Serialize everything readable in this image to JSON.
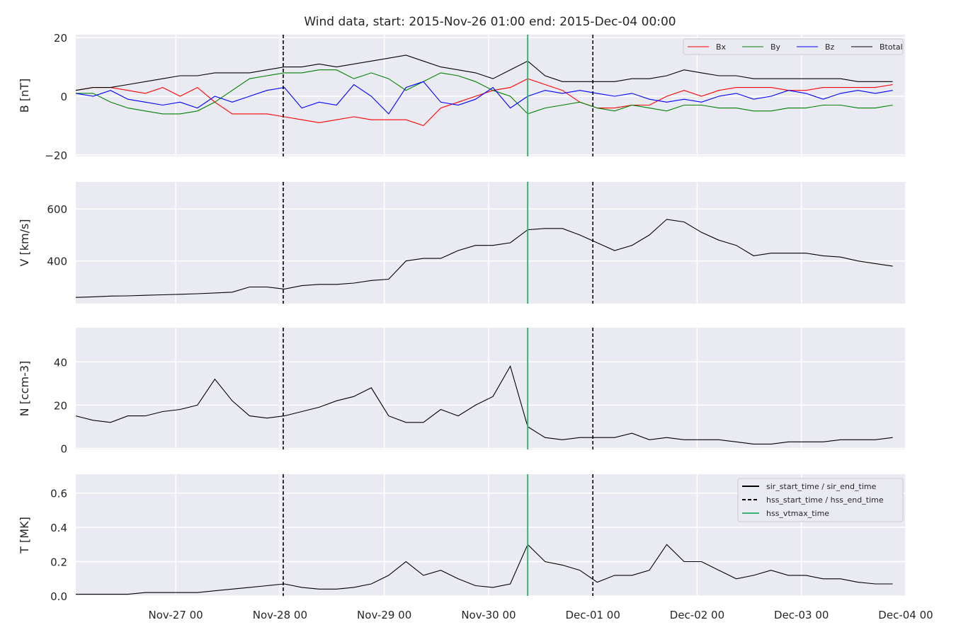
{
  "chart_data": {
    "type": "line",
    "title": "Wind data, start: 2015-Nov-26 01:00  end: 2015-Dec-04 00:00",
    "x": [
      "2015-11-26T01:00",
      "2015-11-26T05:00",
      "2015-11-26T09:00",
      "2015-11-26T13:00",
      "2015-11-26T17:00",
      "2015-11-26T21:00",
      "2015-11-27T01:00",
      "2015-11-27T05:00",
      "2015-11-27T09:00",
      "2015-11-27T13:00",
      "2015-11-27T17:00",
      "2015-11-27T21:00",
      "2015-11-28T01:00",
      "2015-11-28T05:00",
      "2015-11-28T09:00",
      "2015-11-28T13:00",
      "2015-11-28T17:00",
      "2015-11-28T21:00",
      "2015-11-29T01:00",
      "2015-11-29T05:00",
      "2015-11-29T09:00",
      "2015-11-29T13:00",
      "2015-11-29T17:00",
      "2015-11-29T21:00",
      "2015-11-30T01:00",
      "2015-11-30T05:00",
      "2015-11-30T09:00",
      "2015-11-30T13:00",
      "2015-11-30T17:00",
      "2015-11-30T21:00",
      "2015-12-01T01:00",
      "2015-12-01T05:00",
      "2015-12-01T09:00",
      "2015-12-01T13:00",
      "2015-12-01T17:00",
      "2015-12-01T21:00",
      "2015-12-02T01:00",
      "2015-12-02T05:00",
      "2015-12-02T09:00",
      "2015-12-02T13:00",
      "2015-12-02T17:00",
      "2015-12-02T21:00",
      "2015-12-03T01:00",
      "2015-12-03T05:00",
      "2015-12-03T09:00",
      "2015-12-03T13:00",
      "2015-12-03T17:00",
      "2015-12-03T21:00"
    ],
    "xlim": [
      "2015-11-26T01:00",
      "2015-12-04T00:00"
    ],
    "xticks": [
      {
        "value": "2015-11-27T00:00",
        "label": "Nov-27 00"
      },
      {
        "value": "2015-11-28T00:00",
        "label": "Nov-28 00"
      },
      {
        "value": "2015-11-29T00:00",
        "label": "Nov-29 00"
      },
      {
        "value": "2015-11-30T00:00",
        "label": "Nov-30 00"
      },
      {
        "value": "2015-12-01T00:00",
        "label": "Dec-01 00"
      },
      {
        "value": "2015-12-02T00:00",
        "label": "Dec-02 00"
      },
      {
        "value": "2015-12-03T00:00",
        "label": "Dec-03 00"
      },
      {
        "value": "2015-12-04T00:00",
        "label": "Dec-04 00"
      }
    ],
    "grid": true,
    "panels": [
      {
        "ylabel": "B [nT]",
        "ylim": [
          -20.5,
          21
        ],
        "yticks": [
          {
            "value": -20,
            "label": "−20"
          },
          0,
          20
        ],
        "legend": "upper right",
        "series": [
          {
            "name": "Bx",
            "color": "#ff0000",
            "values": [
              2,
              3,
              3,
              2,
              1,
              3,
              0,
              3,
              -2,
              -6,
              -6,
              -6,
              -7,
              -8,
              -9,
              -8,
              -7,
              -8,
              -8,
              -8,
              -10,
              -4,
              -2,
              0,
              2,
              3,
              6,
              4,
              2,
              -2,
              -4,
              -4,
              -3,
              -3,
              0,
              2,
              0,
              2,
              3,
              3,
              3,
              2,
              2,
              3,
              3,
              3,
              3,
              4
            ]
          },
          {
            "name": "By",
            "color": "#008000",
            "values": [
              1,
              1,
              -2,
              -4,
              -5,
              -6,
              -6,
              -5,
              -2,
              2,
              6,
              7,
              8,
              8,
              9,
              9,
              6,
              8,
              6,
              2,
              5,
              8,
              7,
              5,
              2,
              0,
              -6,
              -4,
              -3,
              -2,
              -4,
              -5,
              -3,
              -4,
              -5,
              -3,
              -3,
              -4,
              -4,
              -5,
              -5,
              -4,
              -4,
              -3,
              -3,
              -4,
              -4,
              -3
            ]
          },
          {
            "name": "Bz",
            "color": "#0000ff",
            "values": [
              1,
              0,
              2,
              -1,
              -2,
              -3,
              -2,
              -4,
              0,
              -2,
              0,
              2,
              3,
              -4,
              -2,
              -3,
              4,
              0,
              -6,
              3,
              5,
              -2,
              -3,
              -1,
              3,
              -4,
              0,
              2,
              1,
              2,
              1,
              0,
              1,
              -1,
              -2,
              -1,
              -2,
              0,
              1,
              -1,
              0,
              2,
              1,
              -1,
              1,
              2,
              1,
              2
            ]
          },
          {
            "name": "Btotal",
            "color": "#000000",
            "values": [
              2,
              3,
              3,
              4,
              5,
              6,
              7,
              7,
              8,
              8,
              8,
              9,
              10,
              10,
              11,
              10,
              11,
              12,
              13,
              14,
              12,
              10,
              9,
              8,
              6,
              9,
              12,
              7,
              5,
              5,
              5,
              5,
              6,
              6,
              7,
              9,
              8,
              7,
              7,
              6,
              6,
              6,
              6,
              6,
              6,
              5,
              5,
              5
            ]
          }
        ]
      },
      {
        "ylabel": "V [km/s]",
        "ylim": [
          236,
          704
        ],
        "yticks": [
          400,
          600
        ],
        "series": [
          {
            "color": "#000000",
            "values": [
              260,
              262,
              265,
              266,
              268,
              270,
              272,
              274,
              277,
              280,
              300,
              300,
              292,
              305,
              310,
              310,
              315,
              325,
              330,
              400,
              410,
              410,
              440,
              460,
              460,
              470,
              520,
              525,
              525,
              500,
              470,
              440,
              460,
              500,
              560,
              550,
              510,
              480,
              460,
              420,
              430,
              430,
              430,
              420,
              415,
              400,
              390,
              380
            ]
          }
        ]
      },
      {
        "ylabel": "N [ccm-3]",
        "ylim": [
          -0.5,
          55.8
        ],
        "yticks": [
          0,
          20,
          40
        ],
        "series": [
          {
            "color": "#000000",
            "values": [
              15,
              13,
              12,
              15,
              15,
              17,
              18,
              20,
              32,
              22,
              15,
              14,
              15,
              17,
              19,
              22,
              24,
              28,
              15,
              12,
              12,
              18,
              15,
              20,
              24,
              38,
              10,
              5,
              4,
              5,
              5,
              5,
              7,
              4,
              5,
              4,
              4,
              4,
              3,
              2,
              2,
              3,
              3,
              3,
              4,
              4,
              4,
              5
            ]
          }
        ]
      },
      {
        "ylabel": "T [MK]",
        "ylim": [
          0,
          0.71
        ],
        "yticks": [
          {
            "value": 0,
            "label": "0.0"
          },
          0.2,
          0.4,
          0.6
        ],
        "legend": "upper right",
        "series": [
          {
            "color": "#000000",
            "values": [
              0.01,
              0.01,
              0.01,
              0.01,
              0.02,
              0.02,
              0.02,
              0.02,
              0.03,
              0.04,
              0.05,
              0.06,
              0.07,
              0.05,
              0.04,
              0.04,
              0.05,
              0.07,
              0.12,
              0.2,
              0.12,
              0.15,
              0.1,
              0.06,
              0.05,
              0.07,
              0.3,
              0.2,
              0.18,
              0.15,
              0.08,
              0.12,
              0.12,
              0.15,
              0.3,
              0.2,
              0.2,
              0.15,
              0.1,
              0.12,
              0.15,
              0.12,
              0.12,
              0.1,
              0.1,
              0.08,
              0.07,
              0.07
            ]
          }
        ]
      }
    ],
    "markers": [
      {
        "name": "sir_start_time / sir_end_time",
        "color": "#000000",
        "style": "solid",
        "x": []
      },
      {
        "name": "hss_start_time / hss_end_time",
        "color": "#000000",
        "style": "dashed",
        "x": [
          "2015-11-28T00:45",
          "2015-12-01T00:00"
        ]
      },
      {
        "name": "hss_vtmax_time",
        "color": "#3cb371",
        "style": "solid",
        "x": [
          "2015-11-30T09:00"
        ]
      }
    ]
  }
}
